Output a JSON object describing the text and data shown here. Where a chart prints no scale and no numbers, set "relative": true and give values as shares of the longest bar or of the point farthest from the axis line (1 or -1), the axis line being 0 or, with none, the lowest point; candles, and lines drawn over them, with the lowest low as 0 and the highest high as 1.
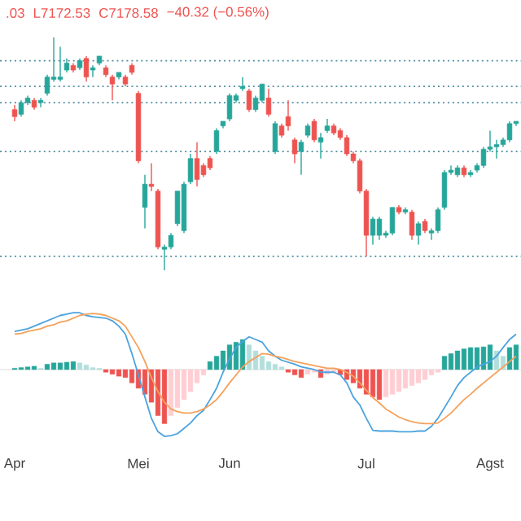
{
  "chart_data": [
    {
      "type": "candlestick",
      "relative": true,
      "tick_labels": false,
      "annotations": [
        ".03",
        "L7172.53",
        "C7178.58",
        "−40.32 (−0.56%)"
      ],
      "ohlc": [
        [
          0.69,
          0.71,
          0.64,
          0.66
        ],
        [
          0.67,
          0.73,
          0.66,
          0.72
        ],
        [
          0.72,
          0.75,
          0.71,
          0.74
        ],
        [
          0.73,
          0.74,
          0.69,
          0.7
        ],
        [
          0.72,
          0.74,
          0.7,
          0.73
        ],
        [
          0.76,
          0.84,
          0.75,
          0.83
        ],
        [
          0.82,
          1,
          0.81,
          0.83
        ],
        [
          0.82,
          0.96,
          0.81,
          0.83
        ],
        [
          0.86,
          0.91,
          0.85,
          0.89
        ],
        [
          0.88,
          0.89,
          0.85,
          0.86
        ],
        [
          0.87,
          0.91,
          0.86,
          0.9
        ],
        [
          0.91,
          0.92,
          0.81,
          0.83
        ],
        [
          0.86,
          0.88,
          0.83,
          0.87
        ],
        [
          0.89,
          0.92,
          0.88,
          0.92
        ],
        [
          0.87,
          0.88,
          0.83,
          0.84
        ],
        [
          0.83,
          0.84,
          0.73,
          0.8
        ],
        [
          0.83,
          0.85,
          0.82,
          0.85
        ],
        [
          0.83,
          0.84,
          0.79,
          0.8
        ],
        [
          0.88,
          0.89,
          0.84,
          0.85
        ],
        [
          0.76,
          0.77,
          0.46,
          0.47
        ],
        [
          0.27,
          0.41,
          0.18,
          0.37
        ],
        [
          0.37,
          0.46,
          0.34,
          0.36
        ],
        [
          0.34,
          0.35,
          0.09,
          0.1
        ],
        [
          0.09,
          0.11,
          0,
          0.1
        ],
        [
          0.1,
          0.16,
          0.09,
          0.15
        ],
        [
          0.2,
          0.34,
          0.19,
          0.34
        ],
        [
          0.17,
          0.38,
          0.16,
          0.37
        ],
        [
          0.38,
          0.5,
          0.37,
          0.48
        ],
        [
          0.48,
          0.55,
          0.36,
          0.39
        ],
        [
          0.45,
          0.46,
          0.4,
          0.41
        ],
        [
          0.48,
          0.49,
          0.43,
          0.44
        ],
        [
          0.51,
          0.61,
          0.5,
          0.6
        ],
        [
          0.62,
          0.64,
          0.61,
          0.64
        ],
        [
          0.65,
          0.76,
          0.64,
          0.75
        ],
        [
          0.73,
          0.76,
          0.72,
          0.75
        ],
        [
          0.78,
          0.83,
          0.77,
          0.79
        ],
        [
          0.77,
          0.78,
          0.68,
          0.69
        ],
        [
          0.69,
          0.75,
          0.68,
          0.74
        ],
        [
          0.73,
          0.8,
          0.72,
          0.8
        ],
        [
          0.74,
          0.78,
          0.66,
          0.67
        ],
        [
          0.51,
          0.64,
          0.5,
          0.63
        ],
        [
          0.62,
          0.63,
          0.57,
          0.58
        ],
        [
          0.66,
          0.73,
          0.6,
          0.62
        ],
        [
          0.56,
          0.57,
          0.46,
          0.5
        ],
        [
          0.51,
          0.56,
          0.41,
          0.55
        ],
        [
          0.58,
          0.63,
          0.57,
          0.62
        ],
        [
          0.64,
          0.65,
          0.55,
          0.56
        ],
        [
          0.55,
          0.59,
          0.48,
          0.57
        ],
        [
          0.6,
          0.65,
          0.59,
          0.62
        ],
        [
          0.62,
          0.63,
          0.58,
          0.59
        ],
        [
          0.6,
          0.61,
          0.56,
          0.57
        ],
        [
          0.57,
          0.58,
          0.49,
          0.5
        ],
        [
          0.5,
          0.51,
          0.46,
          0.47
        ],
        [
          0.47,
          0.48,
          0.33,
          0.34
        ],
        [
          0.34,
          0.35,
          0.06,
          0.15
        ],
        [
          0.15,
          0.23,
          0.11,
          0.22
        ],
        [
          0.15,
          0.23,
          0.13,
          0.22
        ],
        [
          0.15,
          0.17,
          0.14,
          0.16
        ],
        [
          0.16,
          0.27,
          0.15,
          0.27
        ],
        [
          0.27,
          0.28,
          0.24,
          0.25
        ],
        [
          0.25,
          0.27,
          0.24,
          0.26
        ],
        [
          0.25,
          0.26,
          0.13,
          0.15
        ],
        [
          0.15,
          0.21,
          0.11,
          0.2
        ],
        [
          0.21,
          0.22,
          0.16,
          0.17
        ],
        [
          0.16,
          0.18,
          0.13,
          0.17
        ],
        [
          0.17,
          0.27,
          0.16,
          0.26
        ],
        [
          0.27,
          0.43,
          0.26,
          0.42
        ],
        [
          0.42,
          0.45,
          0.41,
          0.43
        ],
        [
          0.41,
          0.45,
          0.4,
          0.44
        ],
        [
          0.44,
          0.45,
          0.4,
          0.41
        ],
        [
          0.41,
          0.43,
          0.4,
          0.42
        ],
        [
          0.43,
          0.46,
          0.42,
          0.45
        ],
        [
          0.45,
          0.53,
          0.44,
          0.52
        ],
        [
          0.52,
          0.6,
          0.51,
          0.53
        ],
        [
          0.53,
          0.56,
          0.48,
          0.54
        ],
        [
          0.54,
          0.57,
          0.53,
          0.56
        ],
        [
          0.56,
          0.64,
          0.55,
          0.63
        ],
        [
          0.63,
          0.64,
          0.62,
          0.64
        ]
      ],
      "ref_lines": [
        {
          "axis": "y",
          "value": 0.9,
          "color": "#4f8fa3",
          "line_style": "dotted"
        },
        {
          "axis": "y",
          "value": 0.79,
          "color": "#4f8fa3",
          "line_style": "dotted"
        },
        {
          "axis": "y",
          "value": 0.72,
          "color": "#4f8fa3",
          "line_style": "dotted"
        },
        {
          "axis": "y",
          "value": 0.51,
          "color": "#4f8fa3",
          "line_style": "dotted"
        },
        {
          "axis": "y",
          "value": 0.06,
          "color": "#4f8fa3",
          "line_style": "dotted"
        }
      ]
    },
    {
      "type": "bar",
      "relative": true,
      "tick_labels": "x",
      "categories": [
        "Apr",
        null,
        null,
        null,
        null,
        null,
        null,
        null,
        null,
        null,
        null,
        null,
        null,
        null,
        null,
        null,
        null,
        null,
        null,
        "Mei",
        null,
        null,
        null,
        null,
        null,
        null,
        null,
        null,
        null,
        null,
        null,
        null,
        null,
        "Jun",
        null,
        null,
        null,
        null,
        null,
        null,
        null,
        null,
        null,
        null,
        null,
        null,
        null,
        null,
        null,
        null,
        null,
        null,
        null,
        null,
        "Jul",
        null,
        null,
        null,
        null,
        null,
        null,
        null,
        null,
        null,
        null,
        null,
        null,
        null,
        null,
        null,
        null,
        null,
        null,
        "Agst",
        null,
        null,
        null,
        null
      ],
      "series": [
        {
          "type": "bar",
          "values": [
            0.02,
            0.03,
            0.04,
            0.05,
            0.02,
            0.08,
            0.1,
            0.1,
            0.11,
            0.12,
            0.1,
            0.07,
            0.03,
            0.02,
            -0.04,
            -0.07,
            -0.1,
            -0.12,
            -0.2,
            -0.28,
            -0.37,
            -0.49,
            -0.69,
            -0.81,
            -0.69,
            -0.57,
            -0.45,
            -0.33,
            -0.2,
            -0.08,
            0.12,
            0.2,
            0.28,
            0.37,
            0.41,
            0.45,
            0.37,
            0.28,
            0.2,
            0.12,
            0.08,
            0.04,
            -0.04,
            -0.08,
            -0.12,
            -0.07,
            -0.04,
            -0.12,
            -0.07,
            -0.04,
            -0.08,
            -0.15,
            -0.2,
            -0.28,
            -0.37,
            -0.41,
            -0.45,
            -0.41,
            -0.37,
            -0.33,
            -0.28,
            -0.24,
            -0.2,
            -0.15,
            -0.08,
            -0.04,
            0.2,
            0.24,
            0.28,
            0.31,
            0.33,
            0.33,
            0.34,
            0.37,
            0.28,
            0.2,
            0.33,
            0.37
          ],
          "colors": [
            "#26a69a",
            "#26a69a",
            "#26a69a",
            "#26a69a",
            "#b2dfdb",
            "#26a69a",
            "#26a69a",
            "#26a69a",
            "#26a69a",
            "#26a69a",
            "#b2dfdb",
            "#b2dfdb",
            "#b2dfdb",
            "#b2dfdb",
            "#ef5350",
            "#ef5350",
            "#ef5350",
            "#ef5350",
            "#ef5350",
            "#ef5350",
            "#ef5350",
            "#ef5350",
            "#ef5350",
            "#ef5350",
            "#ffcdd2",
            "#ffcdd2",
            "#ffcdd2",
            "#ffcdd2",
            "#ffcdd2",
            "#ffcdd2",
            "#26a69a",
            "#26a69a",
            "#26a69a",
            "#26a69a",
            "#26a69a",
            "#26a69a",
            "#b2dfdb",
            "#b2dfdb",
            "#b2dfdb",
            "#b2dfdb",
            "#b2dfdb",
            "#b2dfdb",
            "#ef5350",
            "#ef5350",
            "#ef5350",
            "#ffcdd2",
            "#ffcdd2",
            "#ef5350",
            "#ffcdd2",
            "#ffcdd2",
            "#ef5350",
            "#ef5350",
            "#ef5350",
            "#ef5350",
            "#ef5350",
            "#ef5350",
            "#ef5350",
            "#ffcdd2",
            "#ffcdd2",
            "#ffcdd2",
            "#ffcdd2",
            "#ffcdd2",
            "#ffcdd2",
            "#ffcdd2",
            "#ffcdd2",
            "#ffcdd2",
            "#26a69a",
            "#26a69a",
            "#26a69a",
            "#26a69a",
            "#26a69a",
            "#26a69a",
            "#26a69a",
            "#26a69a",
            "#b2dfdb",
            "#b2dfdb",
            "#26a69a",
            "#26a69a"
          ]
        },
        {
          "type": "line",
          "color": "#4aa3df",
          "values": [
            0.57,
            0.59,
            0.61,
            0.65,
            0.69,
            0.73,
            0.77,
            0.81,
            0.83,
            0.85,
            0.85,
            0.81,
            0.79,
            0.78,
            0.77,
            0.73,
            0.65,
            0.53,
            0.24,
            -0.08,
            -0.41,
            -0.73,
            -0.93,
            -1,
            -0.99,
            -0.96,
            -0.88,
            -0.8,
            -0.69,
            -0.61,
            -0.45,
            -0.28,
            -0.04,
            0.16,
            0.33,
            0.42,
            0.49,
            0.45,
            0.41,
            0.28,
            0.2,
            0.14,
            0.11,
            0.08,
            0.04,
            0.02,
            0,
            -0.04,
            -0.04,
            -0.04,
            -0.08,
            -0.2,
            -0.41,
            -0.53,
            -0.73,
            -0.91,
            -0.92,
            -0.92,
            -0.92,
            -0.93,
            -0.93,
            -0.93,
            -0.92,
            -0.92,
            -0.85,
            -0.73,
            -0.57,
            -0.41,
            -0.24,
            -0.12,
            -0.04,
            0.04,
            0.08,
            0.12,
            0.2,
            0.33,
            0.45,
            0.53
          ]
        },
        {
          "type": "line",
          "color": "#f5a05a",
          "values": [
            0.53,
            0.54,
            0.57,
            0.59,
            0.61,
            0.65,
            0.67,
            0.71,
            0.73,
            0.77,
            0.81,
            0.83,
            0.84,
            0.83,
            0.81,
            0.77,
            0.73,
            0.65,
            0.49,
            0.33,
            0.12,
            -0.12,
            -0.33,
            -0.49,
            -0.59,
            -0.63,
            -0.65,
            -0.65,
            -0.63,
            -0.59,
            -0.53,
            -0.45,
            -0.33,
            -0.2,
            -0.08,
            0.04,
            0.12,
            0.18,
            0.24,
            0.23,
            0.2,
            0.18,
            0.15,
            0.12,
            0.1,
            0.08,
            0.06,
            0.04,
            0.02,
            0.02,
            0,
            -0.04,
            -0.1,
            -0.2,
            -0.31,
            -0.42,
            -0.5,
            -0.59,
            -0.65,
            -0.71,
            -0.75,
            -0.78,
            -0.8,
            -0.81,
            -0.81,
            -0.8,
            -0.73,
            -0.65,
            -0.55,
            -0.45,
            -0.37,
            -0.28,
            -0.2,
            -0.12,
            -0.04,
            0.04,
            0.12,
            0.2
          ]
        }
      ]
    }
  ]
}
